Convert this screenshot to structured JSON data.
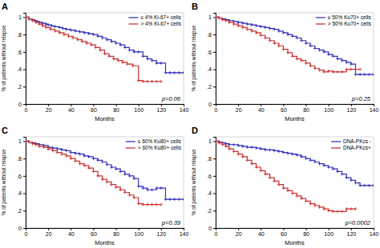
{
  "chart_data": [
    {
      "type": "step",
      "title": "A",
      "annotations": [
        "p=0.06"
      ],
      "xlabel": "Months",
      "ylabel": "% of patients without relapse",
      "xlim": [
        0,
        140
      ],
      "ylim": [
        0,
        1.05
      ],
      "xticks": [
        0,
        20,
        40,
        60,
        80,
        100,
        120,
        140
      ],
      "yticks": [
        0,
        {
          "value": 0.2,
          "label": ".2"
        },
        {
          "value": 0.4,
          "label": ".4"
        },
        {
          "value": 0.6,
          "label": ".6"
        },
        {
          "value": 0.8,
          "label": ".8"
        },
        1
      ],
      "legend": "top-right",
      "grid": false,
      "series": [
        {
          "name": "≤ 4% Ki-67+ cells",
          "color": "#3333bb",
          "marker": "plus",
          "x": [
            0,
            3,
            6,
            8,
            10,
            12,
            15,
            18,
            20,
            23,
            26,
            30,
            33,
            36,
            40,
            44,
            48,
            52,
            56,
            60,
            64,
            68,
            72,
            76,
            80,
            84,
            88,
            92,
            96,
            100,
            104,
            108,
            112,
            116,
            120,
            124,
            128,
            132,
            136,
            140
          ],
          "values": [
            1.0,
            0.98,
            0.97,
            0.96,
            0.95,
            0.94,
            0.93,
            0.92,
            0.91,
            0.9,
            0.89,
            0.88,
            0.87,
            0.86,
            0.85,
            0.84,
            0.83,
            0.82,
            0.81,
            0.8,
            0.78,
            0.76,
            0.74,
            0.72,
            0.7,
            0.68,
            0.65,
            0.62,
            0.6,
            0.6,
            0.55,
            0.52,
            0.5,
            0.47,
            0.47,
            0.36,
            0.36,
            0.36,
            0.36,
            0.36
          ]
        },
        {
          "name": "> 4% Ki-67+ cells",
          "color": "#cc3333",
          "marker": "plus",
          "x": [
            0,
            3,
            6,
            9,
            12,
            15,
            18,
            22,
            26,
            30,
            34,
            38,
            42,
            46,
            50,
            54,
            58,
            62,
            66,
            70,
            74,
            78,
            82,
            86,
            90,
            95,
            100,
            104,
            108,
            112,
            116,
            120
          ],
          "values": [
            1.0,
            0.98,
            0.96,
            0.94,
            0.92,
            0.9,
            0.88,
            0.86,
            0.84,
            0.82,
            0.8,
            0.78,
            0.76,
            0.74,
            0.72,
            0.7,
            0.68,
            0.65,
            0.62,
            0.58,
            0.55,
            0.52,
            0.5,
            0.48,
            0.46,
            0.44,
            0.27,
            0.26,
            0.26,
            0.26,
            0.26,
            0.26
          ]
        }
      ]
    },
    {
      "type": "step",
      "title": "B",
      "annotations": [
        "p=0.25"
      ],
      "xlabel": "Months",
      "ylabel": "% of patients without relapse",
      "xlim": [
        0,
        140
      ],
      "ylim": [
        0,
        1.05
      ],
      "xticks": [
        0,
        20,
        40,
        60,
        80,
        100,
        120,
        140
      ],
      "yticks": [
        0,
        {
          "value": 0.2,
          "label": ".2"
        },
        {
          "value": 0.4,
          "label": ".4"
        },
        {
          "value": 0.6,
          "label": ".6"
        },
        {
          "value": 0.8,
          "label": ".8"
        },
        1
      ],
      "legend": "top-right",
      "grid": false,
      "series": [
        {
          "name": "≤ 50% Ku70+ cells",
          "color": "#3333bb",
          "marker": "plus",
          "x": [
            0,
            3,
            6,
            9,
            12,
            16,
            20,
            24,
            28,
            32,
            36,
            40,
            44,
            48,
            52,
            56,
            60,
            64,
            68,
            72,
            76,
            80,
            84,
            88,
            92,
            96,
            100,
            104,
            108,
            112,
            116,
            120,
            124,
            128,
            132,
            136,
            140
          ],
          "values": [
            1.0,
            0.99,
            0.98,
            0.97,
            0.96,
            0.95,
            0.94,
            0.93,
            0.92,
            0.91,
            0.9,
            0.89,
            0.88,
            0.87,
            0.86,
            0.84,
            0.82,
            0.8,
            0.78,
            0.76,
            0.73,
            0.7,
            0.67,
            0.64,
            0.62,
            0.6,
            0.57,
            0.55,
            0.52,
            0.5,
            0.48,
            0.46,
            0.34,
            0.34,
            0.34,
            0.34,
            0.34
          ]
        },
        {
          "name": "> 50% Ku70+ cells",
          "color": "#cc3333",
          "marker": "plus",
          "x": [
            0,
            3,
            6,
            9,
            12,
            16,
            20,
            24,
            28,
            32,
            36,
            40,
            44,
            48,
            52,
            56,
            60,
            64,
            68,
            72,
            76,
            80,
            84,
            88,
            92,
            96,
            100,
            104,
            108,
            112,
            116,
            120,
            124,
            128
          ],
          "values": [
            1.0,
            0.99,
            0.97,
            0.96,
            0.94,
            0.92,
            0.9,
            0.88,
            0.86,
            0.84,
            0.82,
            0.79,
            0.76,
            0.73,
            0.7,
            0.67,
            0.63,
            0.59,
            0.55,
            0.52,
            0.5,
            0.47,
            0.44,
            0.41,
            0.39,
            0.37,
            0.38,
            0.37,
            0.37,
            0.37,
            0.4,
            0.4,
            0.4,
            0.4
          ]
        }
      ]
    },
    {
      "type": "step",
      "title": "C",
      "annotations": [
        "p=0.39"
      ],
      "xlabel": "Months",
      "ylabel": "% of patients without relapse",
      "xlim": [
        0,
        140
      ],
      "ylim": [
        0,
        1.05
      ],
      "xticks": [
        0,
        20,
        40,
        60,
        80,
        100,
        120,
        140
      ],
      "yticks": [
        0,
        {
          "value": 0.2,
          "label": ".2"
        },
        {
          "value": 0.4,
          "label": ".4"
        },
        {
          "value": 0.6,
          "label": ".6"
        },
        {
          "value": 0.8,
          "label": ".8"
        },
        1
      ],
      "legend": "top-right",
      "grid": false,
      "series": [
        {
          "name": "≤ 60% Ku80+ cells",
          "color": "#3333bb",
          "marker": "plus",
          "x": [
            0,
            3,
            6,
            9,
            12,
            16,
            20,
            24,
            28,
            32,
            36,
            40,
            44,
            48,
            52,
            56,
            60,
            64,
            68,
            72,
            76,
            80,
            84,
            88,
            92,
            96,
            100,
            104,
            108,
            112,
            116,
            120,
            124,
            128,
            132,
            136,
            140
          ],
          "values": [
            1.0,
            0.99,
            0.98,
            0.97,
            0.96,
            0.95,
            0.93,
            0.92,
            0.91,
            0.9,
            0.89,
            0.87,
            0.86,
            0.85,
            0.83,
            0.82,
            0.8,
            0.78,
            0.76,
            0.73,
            0.7,
            0.68,
            0.65,
            0.62,
            0.6,
            0.57,
            0.48,
            0.46,
            0.44,
            0.44,
            0.46,
            0.46,
            0.33,
            0.33,
            0.33,
            0.33,
            0.33
          ]
        },
        {
          "name": "> 60% Ku80+ cells",
          "color": "#cc3333",
          "marker": "plus",
          "x": [
            0,
            3,
            6,
            9,
            12,
            16,
            20,
            24,
            28,
            32,
            36,
            40,
            44,
            48,
            52,
            56,
            60,
            64,
            68,
            72,
            76,
            80,
            84,
            88,
            92,
            96,
            100,
            104,
            108,
            112,
            116,
            120
          ],
          "values": [
            1.0,
            0.99,
            0.97,
            0.96,
            0.94,
            0.93,
            0.91,
            0.89,
            0.87,
            0.85,
            0.83,
            0.8,
            0.77,
            0.74,
            0.72,
            0.69,
            0.65,
            0.6,
            0.56,
            0.53,
            0.5,
            0.47,
            0.44,
            0.41,
            0.38,
            0.35,
            0.28,
            0.27,
            0.27,
            0.27,
            0.27,
            0.27
          ]
        }
      ]
    },
    {
      "type": "step",
      "title": "D",
      "annotations": [
        "p=0.0002"
      ],
      "xlabel": "Months",
      "ylabel": "% of patients without relapse",
      "xlim": [
        0,
        140
      ],
      "ylim": [
        0,
        1.05
      ],
      "xticks": [
        0,
        20,
        40,
        60,
        80,
        100,
        120,
        140
      ],
      "yticks": [
        0,
        {
          "value": 0.2,
          "label": ".2"
        },
        {
          "value": 0.4,
          "label": ".4"
        },
        {
          "value": 0.6,
          "label": ".6"
        },
        {
          "value": 0.8,
          "label": ".8"
        },
        1
      ],
      "legend": "top-right",
      "grid": false,
      "series": [
        {
          "name": "DNA-PKcs -",
          "color": "#3333bb",
          "marker": "plus",
          "x": [
            0,
            3,
            6,
            9,
            12,
            16,
            20,
            24,
            28,
            32,
            36,
            40,
            44,
            48,
            52,
            56,
            60,
            64,
            68,
            72,
            76,
            80,
            84,
            88,
            92,
            96,
            100,
            104,
            108,
            112,
            116,
            120,
            124,
            128,
            132,
            136,
            140
          ],
          "values": [
            1.0,
            0.99,
            0.98,
            0.97,
            0.96,
            0.96,
            0.95,
            0.94,
            0.93,
            0.93,
            0.92,
            0.91,
            0.9,
            0.9,
            0.89,
            0.88,
            0.87,
            0.86,
            0.85,
            0.84,
            0.82,
            0.8,
            0.78,
            0.76,
            0.74,
            0.72,
            0.7,
            0.68,
            0.65,
            0.62,
            0.58,
            0.55,
            0.52,
            0.49,
            0.49,
            0.49,
            0.49
          ]
        },
        {
          "name": "DNA-PKcs+",
          "color": "#cc3333",
          "marker": "plus",
          "x": [
            0,
            3,
            6,
            9,
            12,
            16,
            20,
            24,
            28,
            32,
            36,
            40,
            44,
            48,
            52,
            56,
            60,
            64,
            68,
            72,
            76,
            80,
            84,
            88,
            92,
            96,
            100,
            104,
            108,
            112,
            116,
            120,
            124
          ],
          "values": [
            1.0,
            0.98,
            0.96,
            0.94,
            0.91,
            0.88,
            0.85,
            0.82,
            0.78,
            0.74,
            0.7,
            0.66,
            0.62,
            0.58,
            0.54,
            0.5,
            0.46,
            0.43,
            0.4,
            0.37,
            0.34,
            0.31,
            0.28,
            0.26,
            0.24,
            0.22,
            0.2,
            0.19,
            0.19,
            0.19,
            0.22,
            0.22,
            0.22
          ]
        }
      ]
    }
  ]
}
